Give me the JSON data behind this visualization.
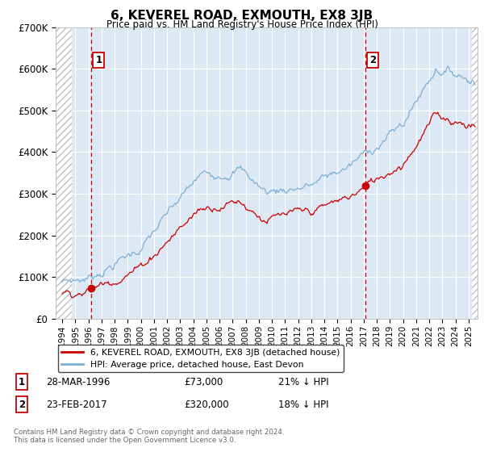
{
  "title": "6, KEVEREL ROAD, EXMOUTH, EX8 3JB",
  "subtitle": "Price paid vs. HM Land Registry's House Price Index (HPI)",
  "legend_line1": "6, KEVEREL ROAD, EXMOUTH, EX8 3JB (detached house)",
  "legend_line2": "HPI: Average price, detached house, East Devon",
  "transaction1_date": "28-MAR-1996",
  "transaction1_price": "£73,000",
  "transaction1_hpi": "21% ↓ HPI",
  "transaction1_year": 1996.23,
  "transaction1_value": 73000,
  "transaction2_date": "23-FEB-2017",
  "transaction2_price": "£320,000",
  "transaction2_hpi": "18% ↓ HPI",
  "transaction2_year": 2017.12,
  "transaction2_value": 320000,
  "copyright": "Contains HM Land Registry data © Crown copyright and database right 2024.\nThis data is licensed under the Open Government Licence v3.0.",
  "hpi_color": "#7bafd4",
  "price_color": "#cc0000",
  "marker_color": "#cc0000",
  "dashed_line_color": "#cc0000",
  "background_color": "#dce9f5",
  "ylim": [
    0,
    700000
  ],
  "xlim_start": 1993.5,
  "xlim_end": 2025.7,
  "ylabel_ticks": [
    "£0",
    "£100K",
    "£200K",
    "£300K",
    "£400K",
    "£500K",
    "£600K",
    "£700K"
  ],
  "ytick_values": [
    0,
    100000,
    200000,
    300000,
    400000,
    500000,
    600000,
    700000
  ],
  "hatch_left_end": 1994.75,
  "hatch_right_start": 2025.25
}
